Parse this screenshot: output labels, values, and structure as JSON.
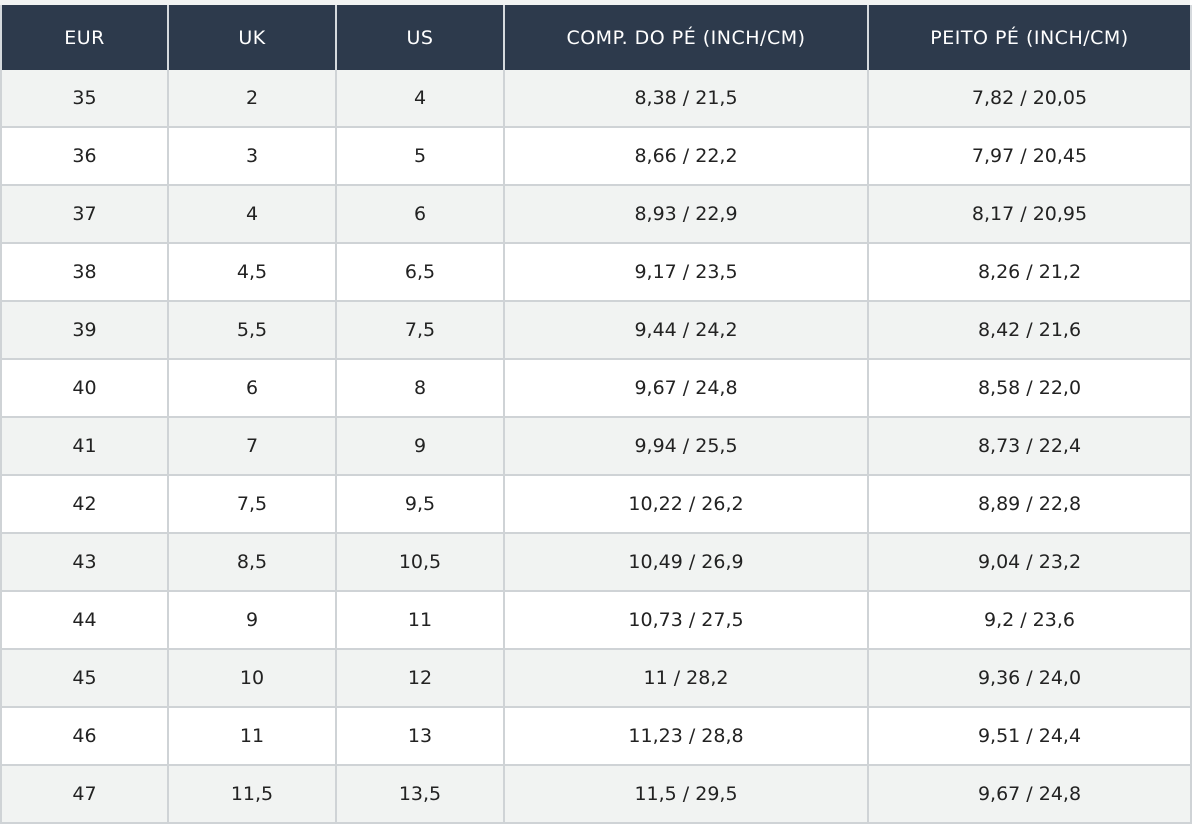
{
  "table": {
    "header": [
      "EUR",
      "UK",
      "US",
      "COMP. DO PÉ (INCH/CM)",
      "PEITO PÉ (INCH/CM)"
    ],
    "rows": [
      [
        "35",
        "2",
        "4",
        "8,38 / 21,5",
        "7,82 / 20,05"
      ],
      [
        "36",
        "3",
        "5",
        "8,66 / 22,2",
        "7,97 / 20,45"
      ],
      [
        "37",
        "4",
        "6",
        "8,93 / 22,9",
        "8,17 / 20,95"
      ],
      [
        "38",
        "4,5",
        "6,5",
        "9,17 / 23,5",
        "8,26 / 21,2"
      ],
      [
        "39",
        "5,5",
        "7,5",
        "9,44 / 24,2",
        "8,42 / 21,6"
      ],
      [
        "40",
        "6",
        "8",
        "9,67 / 24,8",
        "8,58 / 22,0"
      ],
      [
        "41",
        "7",
        "9",
        "9,94 / 25,5",
        "8,73 / 22,4"
      ],
      [
        "42",
        "7,5",
        "9,5",
        "10,22 / 26,2",
        "8,89 / 22,8"
      ],
      [
        "43",
        "8,5",
        "10,5",
        "10,49 / 26,9",
        "9,04 / 23,2"
      ],
      [
        "44",
        "9",
        "11",
        "10,73 / 27,5",
        "9,2 / 23,6"
      ],
      [
        "45",
        "10",
        "12",
        "11 / 28,2",
        "9,36 / 24,0"
      ],
      [
        "46",
        "11",
        "13",
        "11,23 / 28,8",
        "9,51 / 24,4"
      ],
      [
        "47",
        "11,5",
        "13,5",
        "11,5 / 29,5",
        "9,67 / 24,8"
      ]
    ]
  }
}
